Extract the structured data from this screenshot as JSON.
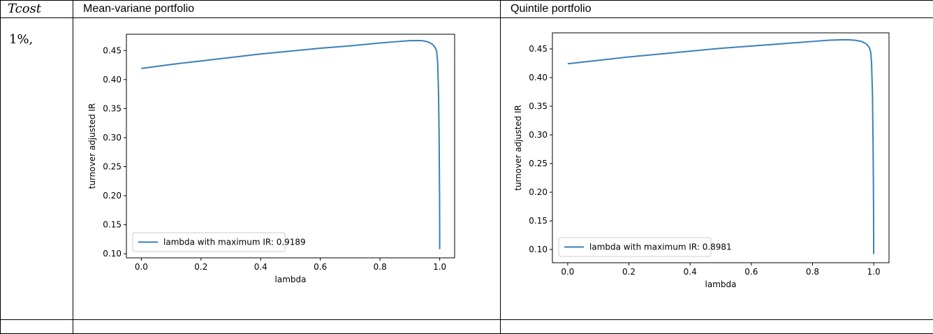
{
  "table": {
    "header_col1": "Tcost",
    "header_col2": "Mean-variane portfolio",
    "header_col3": "Quintile portfolio",
    "row1_label": "1%,"
  },
  "line_color": "#3a80ba",
  "chart_data": [
    {
      "type": "line",
      "xlabel": "lambda",
      "ylabel": "turnover adjusted IR",
      "xlim": [
        -0.05,
        1.05
      ],
      "ylim": [
        0.093,
        0.478
      ],
      "xticks": [
        0.0,
        0.2,
        0.4,
        0.6,
        0.8,
        1.0
      ],
      "xtick_labels": [
        "0.0",
        "0.2",
        "0.4",
        "0.6",
        "0.8",
        "1.0"
      ],
      "yticks": [
        0.1,
        0.15,
        0.2,
        0.25,
        0.3,
        0.35,
        0.4,
        0.45
      ],
      "ytick_labels": [
        "0.10",
        "0.15",
        "0.20",
        "0.25",
        "0.30",
        "0.35",
        "0.40",
        "0.45"
      ],
      "grid": false,
      "legend_position": "lower-left",
      "series": [
        {
          "name": "lambda with maximum IR: 0.9189",
          "x": [
            0.0,
            0.1,
            0.2,
            0.3,
            0.4,
            0.5,
            0.6,
            0.7,
            0.8,
            0.85,
            0.9,
            0.9189,
            0.94,
            0.96,
            0.975,
            0.985,
            0.99,
            0.993,
            0.996,
            0.998,
            0.9995,
            1.0
          ],
          "y": [
            0.419,
            0.426,
            0.432,
            0.438,
            0.444,
            0.449,
            0.454,
            0.458,
            0.463,
            0.465,
            0.467,
            0.4672,
            0.467,
            0.465,
            0.461,
            0.455,
            0.448,
            0.43,
            0.38,
            0.3,
            0.2,
            0.108
          ]
        }
      ]
    },
    {
      "type": "line",
      "xlabel": "lambda",
      "ylabel": "turnover adjusted IR",
      "xlim": [
        -0.05,
        1.05
      ],
      "ylim": [
        0.077,
        0.478
      ],
      "xticks": [
        0.0,
        0.2,
        0.4,
        0.6,
        0.8,
        1.0
      ],
      "xtick_labels": [
        "0.0",
        "0.2",
        "0.4",
        "0.6",
        "0.8",
        "1.0"
      ],
      "yticks": [
        0.1,
        0.15,
        0.2,
        0.25,
        0.3,
        0.35,
        0.4,
        0.45
      ],
      "ytick_labels": [
        "0.10",
        "0.15",
        "0.20",
        "0.25",
        "0.30",
        "0.35",
        "0.40",
        "0.45"
      ],
      "grid": false,
      "legend_position": "lower-left",
      "series": [
        {
          "name": "lambda with maximum IR: 0.8981",
          "x": [
            0.0,
            0.1,
            0.2,
            0.3,
            0.4,
            0.5,
            0.6,
            0.7,
            0.8,
            0.85,
            0.8981,
            0.92,
            0.94,
            0.96,
            0.975,
            0.985,
            0.99,
            0.993,
            0.996,
            0.998,
            0.9995,
            1.0
          ],
          "y": [
            0.424,
            0.43,
            0.436,
            0.441,
            0.446,
            0.451,
            0.455,
            0.459,
            0.463,
            0.465,
            0.466,
            0.4658,
            0.465,
            0.463,
            0.459,
            0.453,
            0.445,
            0.425,
            0.37,
            0.28,
            0.18,
            0.092
          ]
        }
      ]
    }
  ]
}
